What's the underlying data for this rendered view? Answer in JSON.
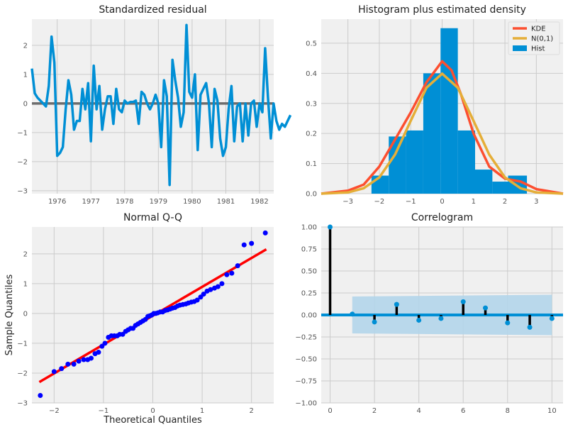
{
  "colors": {
    "blue": "#008fd5",
    "red": "#fc4f30",
    "orange": "#e5ae38",
    "grey": "#6d6d6d",
    "panel": "#f0f0f0",
    "grid": "#cbcbcb",
    "band": "#b3d5ea",
    "qq_dot": "#0000ff",
    "qq_line": "#ff0000"
  },
  "chart_data": [
    {
      "type": "line",
      "title": "Standardized residual",
      "xlabel": "",
      "ylabel": "",
      "xlim": [
        1975.25,
        1982.42
      ],
      "ylim": [
        -3.1,
        2.9
      ],
      "xticks": [
        1976,
        1977,
        1978,
        1979,
        1980,
        1981,
        1982
      ],
      "yticks": [
        -3,
        -2,
        -1,
        0,
        1,
        2
      ],
      "zero_line": 0,
      "x_start": 1975.25,
      "x_step": 0.08333,
      "values": [
        1.2,
        0.35,
        0.2,
        0.1,
        0.0,
        -0.1,
        0.6,
        2.3,
        1.4,
        -1.8,
        -1.7,
        -1.5,
        -0.2,
        0.8,
        0.3,
        -0.9,
        -0.6,
        -0.6,
        0.5,
        -0.2,
        0.7,
        -1.3,
        1.3,
        -0.2,
        0.6,
        -0.9,
        -0.2,
        0.25,
        0.25,
        -0.7,
        0.5,
        -0.2,
        -0.3,
        0.1,
        0.0,
        0.05,
        0.05,
        0.1,
        -0.7,
        0.4,
        0.3,
        0.0,
        -0.2,
        0.0,
        0.3,
        0.0,
        -1.5,
        0.8,
        0.25,
        -2.8,
        1.5,
        0.8,
        0.2,
        -0.8,
        -0.3,
        2.7,
        0.4,
        0.2,
        1.0,
        -1.6,
        0.3,
        0.5,
        0.7,
        0.0,
        -1.5,
        0.5,
        0.1,
        -1.2,
        -1.8,
        -1.5,
        -0.2,
        0.6,
        -1.3,
        -0.1,
        0.0,
        -1.3,
        0.0,
        -1.1,
        0.0,
        0.1,
        -0.8,
        0.0,
        -0.3,
        1.9,
        0.2,
        -1.2,
        0.0,
        -0.6,
        -0.9,
        -0.7,
        -0.8,
        -0.6,
        -0.4
      ]
    },
    {
      "type": "bar",
      "title": "Histogram plus estimated density",
      "xlabel": "",
      "ylabel": "",
      "xlim": [
        -3.85,
        3.85
      ],
      "ylim": [
        0,
        0.58
      ],
      "xticks": [
        -3,
        -2,
        -1,
        0,
        1,
        2,
        3
      ],
      "yticks": [
        0.0,
        0.1,
        0.2,
        0.3,
        0.4,
        0.5
      ],
      "bins": [
        {
          "left": -2.25,
          "right": -1.7,
          "value": 0.06
        },
        {
          "left": -1.7,
          "right": -1.15,
          "value": 0.19
        },
        {
          "left": -1.15,
          "right": -0.6,
          "value": 0.21
        },
        {
          "left": -0.6,
          "right": -0.05,
          "value": 0.4
        },
        {
          "left": -0.05,
          "right": 0.5,
          "value": 0.55
        },
        {
          "left": 0.5,
          "right": 1.05,
          "value": 0.21
        },
        {
          "left": 1.05,
          "right": 1.6,
          "value": 0.08
        },
        {
          "left": 1.6,
          "right": 2.1,
          "value": 0.04
        },
        {
          "left": 2.1,
          "right": 2.7,
          "value": 0.06
        }
      ],
      "kde": {
        "x": [
          -3.85,
          -3.0,
          -2.5,
          -2.0,
          -1.5,
          -1.0,
          -0.5,
          0.0,
          0.3,
          0.6,
          1.0,
          1.5,
          2.0,
          2.5,
          3.0,
          3.85
        ],
        "y": [
          0.0,
          0.01,
          0.03,
          0.09,
          0.18,
          0.27,
          0.37,
          0.44,
          0.41,
          0.33,
          0.2,
          0.09,
          0.05,
          0.04,
          0.015,
          0.0
        ]
      },
      "normal_pdf": {
        "x": [
          -3.85,
          -3.0,
          -2.5,
          -2.0,
          -1.5,
          -1.0,
          -0.5,
          0.0,
          0.5,
          1.0,
          1.5,
          2.0,
          2.5,
          3.0,
          3.85
        ],
        "y": [
          0.0,
          0.004,
          0.018,
          0.054,
          0.13,
          0.242,
          0.352,
          0.399,
          0.352,
          0.242,
          0.13,
          0.054,
          0.018,
          0.004,
          0.0
        ]
      },
      "legend": [
        "KDE",
        "N(0,1)",
        "Hist"
      ],
      "legend_placement": "top-right"
    },
    {
      "type": "scatter",
      "title": "Normal Q-Q",
      "xlabel": "Theoretical Quantiles",
      "ylabel": "Sample Quantiles",
      "xlim": [
        -2.45,
        2.45
      ],
      "ylim": [
        -3.0,
        2.9
      ],
      "xticks": [
        -2,
        -1,
        0,
        1,
        2
      ],
      "yticks": [
        -3,
        -2,
        -1,
        0,
        1,
        2
      ],
      "line": {
        "x": [
          -2.3,
          2.3
        ],
        "y": [
          -2.3,
          2.15
        ]
      },
      "points": [
        [
          -2.28,
          -2.75
        ],
        [
          -2.0,
          -1.95
        ],
        [
          -1.85,
          -1.85
        ],
        [
          -1.72,
          -1.7
        ],
        [
          -1.6,
          -1.7
        ],
        [
          -1.5,
          -1.6
        ],
        [
          -1.4,
          -1.55
        ],
        [
          -1.32,
          -1.55
        ],
        [
          -1.25,
          -1.5
        ],
        [
          -1.17,
          -1.35
        ],
        [
          -1.1,
          -1.3
        ],
        [
          -1.03,
          -1.1
        ],
        [
          -0.97,
          -1.0
        ],
        [
          -0.9,
          -0.8
        ],
        [
          -0.84,
          -0.75
        ],
        [
          -0.78,
          -0.75
        ],
        [
          -0.72,
          -0.75
        ],
        [
          -0.67,
          -0.7
        ],
        [
          -0.61,
          -0.7
        ],
        [
          -0.55,
          -0.6
        ],
        [
          -0.5,
          -0.55
        ],
        [
          -0.45,
          -0.5
        ],
        [
          -0.4,
          -0.5
        ],
        [
          -0.35,
          -0.4
        ],
        [
          -0.3,
          -0.35
        ],
        [
          -0.25,
          -0.3
        ],
        [
          -0.2,
          -0.25
        ],
        [
          -0.15,
          -0.2
        ],
        [
          -0.1,
          -0.1
        ],
        [
          -0.06,
          -0.08
        ],
        [
          -0.02,
          -0.05
        ],
        [
          0.02,
          0.0
        ],
        [
          0.06,
          0.0
        ],
        [
          0.1,
          0.02
        ],
        [
          0.15,
          0.05
        ],
        [
          0.2,
          0.05
        ],
        [
          0.25,
          0.1
        ],
        [
          0.3,
          0.12
        ],
        [
          0.35,
          0.15
        ],
        [
          0.4,
          0.18
        ],
        [
          0.45,
          0.2
        ],
        [
          0.5,
          0.25
        ],
        [
          0.55,
          0.28
        ],
        [
          0.61,
          0.3
        ],
        [
          0.67,
          0.32
        ],
        [
          0.72,
          0.35
        ],
        [
          0.78,
          0.38
        ],
        [
          0.84,
          0.4
        ],
        [
          0.9,
          0.45
        ],
        [
          0.97,
          0.55
        ],
        [
          1.03,
          0.65
        ],
        [
          1.1,
          0.75
        ],
        [
          1.17,
          0.8
        ],
        [
          1.25,
          0.85
        ],
        [
          1.32,
          0.9
        ],
        [
          1.4,
          1.0
        ],
        [
          1.5,
          1.3
        ],
        [
          1.6,
          1.35
        ],
        [
          1.72,
          1.6
        ],
        [
          1.85,
          2.3
        ],
        [
          2.0,
          2.35
        ],
        [
          2.28,
          2.7
        ]
      ]
    },
    {
      "type": "bar",
      "title": "Correlogram",
      "xlabel": "",
      "ylabel": "",
      "xlim": [
        -0.4,
        10.5
      ],
      "ylim": [
        -1.0,
        1.0
      ],
      "xticks": [
        0,
        2,
        4,
        6,
        8,
        10
      ],
      "yticks": [
        -1.0,
        -0.75,
        -0.5,
        -0.25,
        0.0,
        0.25,
        0.5,
        0.75,
        1.0
      ],
      "ytick_labels": [
        "−1.00",
        "−0.75",
        "−0.50",
        "−0.25",
        "0.00",
        "0.25",
        "0.50",
        "0.75",
        "1.00"
      ],
      "lags": [
        0,
        1,
        2,
        3,
        4,
        5,
        6,
        7,
        8,
        9,
        10
      ],
      "values": [
        1.0,
        0.01,
        -0.08,
        0.12,
        -0.06,
        -0.04,
        0.15,
        0.08,
        -0.09,
        -0.14,
        -0.04
      ],
      "confidence_band": {
        "x": [
          1,
          10
        ],
        "upper": [
          0.21,
          0.23
        ],
        "lower": [
          -0.21,
          -0.23
        ]
      }
    }
  ]
}
